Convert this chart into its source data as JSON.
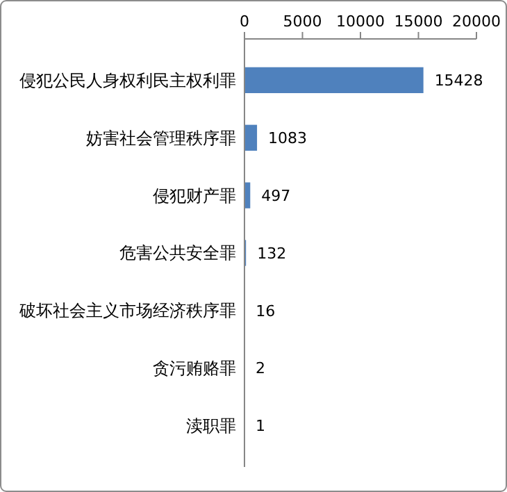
{
  "chart_data": {
    "type": "bar",
    "orientation": "horizontal",
    "categories": [
      "侵犯公民人身权利民主权利罪",
      "妨害社会管理秩序罪",
      "侵犯财产罪",
      "危害公共安全罪",
      "破坏社会主义市场经济秩序罪",
      "贪污贿赂罪",
      "渎职罪"
    ],
    "values": [
      15428,
      1083,
      497,
      132,
      16,
      2,
      1
    ],
    "color": "#4f81bd",
    "xlim": [
      0,
      20000
    ],
    "xticks": [
      0,
      5000,
      10000,
      15000,
      20000
    ],
    "data_labels": true
  }
}
